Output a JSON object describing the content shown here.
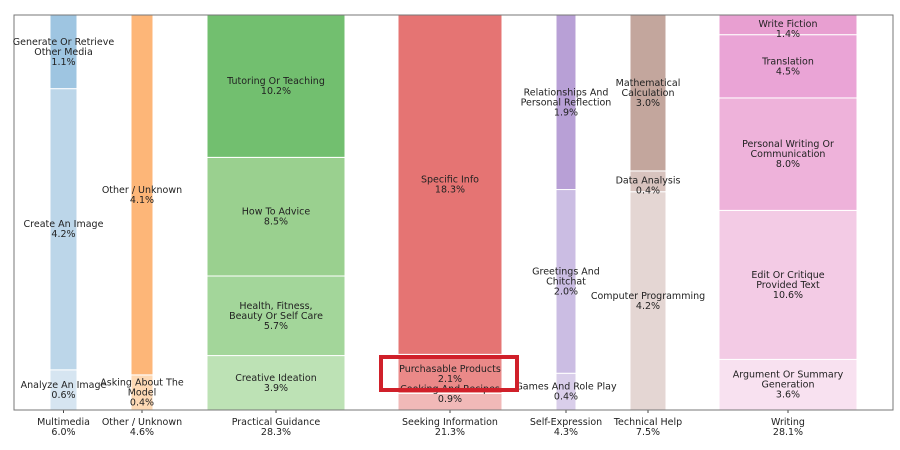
{
  "chart_data": {
    "type": "bar",
    "subtype": "stacked-normalized-marimekko",
    "unit": "%",
    "grid": false,
    "highlight": {
      "category": "Seeking Information",
      "segment": "Purchasable Products",
      "color": "#d0202a"
    },
    "categories": [
      {
        "name": "Multimedia",
        "total": "6.0%",
        "segments": [
          {
            "label": "Analyze An Image",
            "value": 0.6,
            "color": "#d6e5f1"
          },
          {
            "label": "Create An Image",
            "value": 4.2,
            "color": "#bcd6e9"
          },
          {
            "label": "Generate Or Retrieve Other Media",
            "value": 1.1,
            "color": "#9ec5e1"
          }
        ]
      },
      {
        "name": "Other / Unknown",
        "total": "4.6%",
        "segments": [
          {
            "label": "Asking About The Model",
            "value": 0.4,
            "color": "#fdd9b5"
          },
          {
            "label": "Other / Unknown",
            "value": 4.1,
            "color": "#fdb678"
          }
        ]
      },
      {
        "name": "Practical Guidance",
        "total": "28.3%",
        "segments": [
          {
            "label": "Creative Ideation",
            "value": 3.9,
            "color": "#bde2b5"
          },
          {
            "label": "Health, Fitness, Beauty Or Self Care",
            "value": 5.7,
            "color": "#a3d69a"
          },
          {
            "label": "How To Advice",
            "value": 8.5,
            "color": "#9ad08f"
          },
          {
            "label": "Tutoring Or Teaching",
            "value": 10.2,
            "color": "#72bf6f"
          }
        ]
      },
      {
        "name": "Seeking Information",
        "total": "21.3%",
        "segments": [
          {
            "label": "Cooking And Recipes",
            "value": 0.9,
            "color": "#f1b9b8"
          },
          {
            "label": "Purchasable Products",
            "value": 2.1,
            "color": "#ea8988"
          },
          {
            "label": "Specific Info",
            "value": 18.3,
            "color": "#e57473"
          }
        ]
      },
      {
        "name": "Self-Expression",
        "total": "4.3%",
        "segments": [
          {
            "label": "Games And Role Play",
            "value": 0.4,
            "color": "#d9ceea"
          },
          {
            "label": "Greetings And Chitchat",
            "value": 2.0,
            "color": "#cbbde3"
          },
          {
            "label": "Relationships And Personal Reflection",
            "value": 1.9,
            "color": "#b8a0d6"
          }
        ]
      },
      {
        "name": "Technical Help",
        "total": "7.5%",
        "segments": [
          {
            "label": "Computer Programming",
            "value": 4.2,
            "color": "#e4d6d3"
          },
          {
            "label": "Data Analysis",
            "value": 0.4,
            "color": "#d8c3be"
          },
          {
            "label": "Mathematical Calculation",
            "value": 3.0,
            "color": "#c3a69d"
          }
        ]
      },
      {
        "name": "Writing",
        "total": "28.1%",
        "segments": [
          {
            "label": "Argument Or Summary Generation",
            "value": 3.6,
            "color": "#f8e1f0"
          },
          {
            "label": "Edit Or Critique Provided Text",
            "value": 10.6,
            "color": "#f3cbe5"
          },
          {
            "label": "Personal Writing Or Communication",
            "value": 8.0,
            "color": "#eeb2da"
          },
          {
            "label": "Translation",
            "value": 4.5,
            "color": "#eaa4d6"
          },
          {
            "label": "Write Fiction",
            "value": 1.4,
            "color": "#e89fd1"
          }
        ]
      }
    ]
  }
}
